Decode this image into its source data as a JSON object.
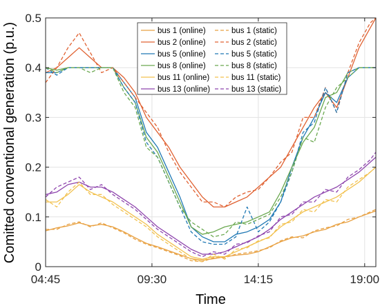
{
  "chart_data": {
    "type": "line",
    "xlabel": "Time",
    "ylabel": "Comitted conventional generation (p.u.)",
    "xlim": [
      0,
      14.75
    ],
    "ylim": [
      0,
      0.5
    ],
    "x_ticks": [
      {
        "value": 0,
        "label": "04:45"
      },
      {
        "value": 4.75,
        "label": "09:30"
      },
      {
        "value": 9.5,
        "label": "14:15"
      },
      {
        "value": 14.25,
        "label": "19:00"
      }
    ],
    "y_ticks": [
      {
        "value": 0,
        "label": "0"
      },
      {
        "value": 0.1,
        "label": "0.1"
      },
      {
        "value": 0.2,
        "label": "0.2"
      },
      {
        "value": 0.3,
        "label": "0.3"
      },
      {
        "value": 0.4,
        "label": "0.4"
      },
      {
        "value": 0.5,
        "label": "0.5"
      }
    ],
    "grid": true,
    "legend_position": "top-center",
    "legend_columns": 2,
    "series": [
      {
        "name": "bus 1 (online)",
        "color": "#E8A040",
        "dash": "solid",
        "x": [
          0,
          0.5,
          1,
          1.5,
          2,
          2.5,
          3,
          3.5,
          4,
          4.5,
          5,
          5.5,
          6,
          6.5,
          7,
          7.5,
          8,
          8.5,
          9,
          9.5,
          10,
          10.5,
          11,
          11.5,
          12,
          12.5,
          13,
          13.5,
          14,
          14.5,
          14.75
        ],
        "y": [
          0.072,
          0.078,
          0.082,
          0.088,
          0.082,
          0.085,
          0.08,
          0.07,
          0.058,
          0.047,
          0.04,
          0.032,
          0.024,
          0.016,
          0.013,
          0.016,
          0.02,
          0.023,
          0.025,
          0.03,
          0.04,
          0.05,
          0.058,
          0.062,
          0.07,
          0.075,
          0.085,
          0.09,
          0.1,
          0.108,
          0.112
        ]
      },
      {
        "name": "bus 2 (online)",
        "color": "#E06030",
        "dash": "solid",
        "x": [
          0,
          0.5,
          1,
          1.5,
          2,
          2.5,
          3,
          3.5,
          4,
          4.5,
          5,
          5.5,
          6,
          6.5,
          7,
          7.5,
          8,
          8.5,
          9,
          9.5,
          10,
          10.5,
          11,
          11.5,
          12,
          12.5,
          13,
          13.5,
          14,
          14.5,
          14.75
        ],
        "y": [
          0.39,
          0.4,
          0.42,
          0.44,
          0.42,
          0.4,
          0.4,
          0.38,
          0.35,
          0.3,
          0.27,
          0.24,
          0.2,
          0.17,
          0.14,
          0.12,
          0.12,
          0.13,
          0.14,
          0.16,
          0.18,
          0.2,
          0.24,
          0.28,
          0.32,
          0.35,
          0.32,
          0.38,
          0.44,
          0.48,
          0.5
        ]
      },
      {
        "name": "bus 5 (online)",
        "color": "#1F78B4",
        "dash": "solid",
        "x": [
          0,
          0.5,
          1,
          1.5,
          2,
          2.5,
          3,
          3.5,
          4,
          4.5,
          5,
          5.5,
          6,
          6.5,
          7,
          7.5,
          8,
          8.5,
          9,
          9.5,
          10,
          10.5,
          11,
          11.5,
          12,
          12.5,
          13,
          13.5,
          14,
          14.5,
          14.75
        ],
        "y": [
          0.39,
          0.39,
          0.4,
          0.4,
          0.4,
          0.4,
          0.4,
          0.37,
          0.34,
          0.27,
          0.24,
          0.19,
          0.14,
          0.08,
          0.06,
          0.05,
          0.05,
          0.065,
          0.07,
          0.08,
          0.095,
          0.13,
          0.2,
          0.26,
          0.3,
          0.35,
          0.33,
          0.38,
          0.4,
          0.4,
          0.4
        ]
      },
      {
        "name": "bus 8 (online)",
        "color": "#6AA84F",
        "dash": "solid",
        "x": [
          0,
          0.5,
          1,
          1.5,
          2,
          2.5,
          3,
          3.5,
          4,
          4.5,
          5,
          5.5,
          6,
          6.5,
          7,
          7.5,
          8,
          8.5,
          9,
          9.5,
          10,
          10.5,
          11,
          11.5,
          12,
          12.5,
          13,
          13.5,
          14,
          14.5,
          14.75
        ],
        "y": [
          0.4,
          0.395,
          0.4,
          0.4,
          0.4,
          0.4,
          0.4,
          0.36,
          0.33,
          0.26,
          0.23,
          0.18,
          0.13,
          0.08,
          0.065,
          0.07,
          0.08,
          0.085,
          0.09,
          0.1,
          0.11,
          0.15,
          0.2,
          0.25,
          0.28,
          0.34,
          0.35,
          0.39,
          0.4,
          0.4,
          0.4
        ]
      },
      {
        "name": "bus 11 (online)",
        "color": "#F2C14E",
        "dash": "solid",
        "x": [
          0,
          0.5,
          1,
          1.5,
          2,
          2.5,
          3,
          3.5,
          4,
          4.5,
          5,
          5.5,
          6,
          6.5,
          7,
          7.5,
          8,
          8.5,
          9,
          9.5,
          10,
          10.5,
          11,
          11.5,
          12,
          12.5,
          13,
          13.5,
          14,
          14.5,
          14.75
        ],
        "y": [
          0.13,
          0.13,
          0.145,
          0.165,
          0.15,
          0.14,
          0.13,
          0.115,
          0.1,
          0.085,
          0.065,
          0.05,
          0.035,
          0.02,
          0.015,
          0.02,
          0.02,
          0.03,
          0.04,
          0.05,
          0.06,
          0.08,
          0.095,
          0.11,
          0.12,
          0.13,
          0.14,
          0.155,
          0.17,
          0.19,
          0.2
        ]
      },
      {
        "name": "bus 13 (online)",
        "color": "#8E44AD",
        "dash": "solid",
        "x": [
          0,
          0.5,
          1,
          1.5,
          2,
          2.5,
          3,
          3.5,
          4,
          4.5,
          5,
          5.5,
          6,
          6.5,
          7,
          7.5,
          8,
          8.5,
          9,
          9.5,
          10,
          10.5,
          11,
          11.5,
          12,
          12.5,
          13,
          13.5,
          14,
          14.5,
          14.75
        ],
        "y": [
          0.145,
          0.15,
          0.165,
          0.17,
          0.16,
          0.16,
          0.15,
          0.135,
          0.12,
          0.1,
          0.08,
          0.065,
          0.05,
          0.035,
          0.025,
          0.025,
          0.03,
          0.04,
          0.05,
          0.06,
          0.075,
          0.095,
          0.11,
          0.125,
          0.14,
          0.15,
          0.16,
          0.175,
          0.19,
          0.21,
          0.22
        ]
      },
      {
        "name": "bus 1 (static)",
        "color": "#E8A040",
        "dash": "dashed",
        "x": [
          0,
          0.5,
          1,
          1.5,
          2,
          2.5,
          3,
          3.5,
          4,
          4.5,
          5,
          5.5,
          6,
          6.5,
          7,
          7.5,
          8,
          8.5,
          9,
          9.5,
          10,
          10.5,
          11,
          11.5,
          12,
          12.5,
          13,
          13.5,
          14,
          14.5,
          14.75
        ],
        "y": [
          0.075,
          0.075,
          0.085,
          0.09,
          0.08,
          0.088,
          0.078,
          0.068,
          0.055,
          0.045,
          0.038,
          0.03,
          0.022,
          0.012,
          0.01,
          0.018,
          0.018,
          0.025,
          0.028,
          0.032,
          0.038,
          0.052,
          0.06,
          0.058,
          0.072,
          0.078,
          0.082,
          0.095,
          0.1,
          0.11,
          0.115
        ]
      },
      {
        "name": "bus 2 (static)",
        "color": "#E06030",
        "dash": "dashed",
        "x": [
          0,
          0.5,
          1,
          1.5,
          2,
          2.5,
          3,
          3.5,
          4,
          4.5,
          5,
          5.5,
          6,
          6.5,
          7,
          7.5,
          8,
          8.5,
          9,
          9.5,
          10,
          10.5,
          11,
          11.5,
          12,
          12.5,
          13,
          13.5,
          14,
          14.5,
          14.75
        ],
        "y": [
          0.37,
          0.4,
          0.44,
          0.47,
          0.43,
          0.39,
          0.4,
          0.37,
          0.34,
          0.31,
          0.28,
          0.23,
          0.19,
          0.16,
          0.13,
          0.13,
          0.12,
          0.14,
          0.15,
          0.155,
          0.18,
          0.21,
          0.23,
          0.3,
          0.3,
          0.36,
          0.31,
          0.39,
          0.45,
          0.49,
          0.5
        ]
      },
      {
        "name": "bus 5 (static)",
        "color": "#1F78B4",
        "dash": "dashed",
        "x": [
          0,
          0.5,
          1,
          1.5,
          2,
          2.5,
          3,
          3.5,
          4,
          4.5,
          5,
          5.5,
          6,
          6.5,
          7,
          7.5,
          8,
          8.5,
          9,
          9.5,
          10,
          10.5,
          11,
          11.5,
          12,
          12.5,
          13,
          13.5,
          14,
          14.5,
          14.75
        ],
        "y": [
          0.4,
          0.385,
          0.4,
          0.4,
          0.4,
          0.4,
          0.4,
          0.36,
          0.33,
          0.25,
          0.22,
          0.17,
          0.12,
          0.07,
          0.05,
          0.045,
          0.045,
          0.06,
          0.12,
          0.07,
          0.09,
          0.13,
          0.19,
          0.27,
          0.29,
          0.36,
          0.31,
          0.39,
          0.4,
          0.4,
          0.4
        ]
      },
      {
        "name": "bus 8 (static)",
        "color": "#6AA84F",
        "dash": "dashed",
        "x": [
          0,
          0.5,
          1,
          1.5,
          2,
          2.5,
          3,
          3.5,
          4,
          4.5,
          5,
          5.5,
          6,
          6.5,
          7,
          7.5,
          8,
          8.5,
          9,
          9.5,
          10,
          10.5,
          11,
          11.5,
          12,
          12.5,
          13,
          13.5,
          14,
          14.5,
          14.75
        ],
        "y": [
          0.4,
          0.39,
          0.4,
          0.4,
          0.39,
          0.4,
          0.4,
          0.35,
          0.32,
          0.24,
          0.22,
          0.17,
          0.12,
          0.09,
          0.075,
          0.06,
          0.065,
          0.09,
          0.085,
          0.095,
          0.105,
          0.14,
          0.19,
          0.26,
          0.25,
          0.32,
          0.36,
          0.38,
          0.4,
          0.4,
          0.4
        ]
      },
      {
        "name": "bus 11 (static)",
        "color": "#F2C14E",
        "dash": "dashed",
        "x": [
          0,
          0.5,
          1,
          1.5,
          2,
          2.5,
          3,
          3.5,
          4,
          4.5,
          5,
          5.5,
          6,
          6.5,
          7,
          7.5,
          8,
          8.5,
          9,
          9.5,
          10,
          10.5,
          11,
          11.5,
          12,
          12.5,
          13,
          13.5,
          14,
          14.5,
          14.75
        ],
        "y": [
          0.135,
          0.12,
          0.15,
          0.17,
          0.145,
          0.145,
          0.125,
          0.11,
          0.095,
          0.08,
          0.06,
          0.045,
          0.03,
          0.015,
          0.01,
          0.025,
          0.015,
          0.035,
          0.038,
          0.052,
          0.058,
          0.085,
          0.09,
          0.115,
          0.11,
          0.135,
          0.13,
          0.16,
          0.175,
          0.19,
          0.2
        ]
      },
      {
        "name": "bus 13 (static)",
        "color": "#8E44AD",
        "dash": "dashed",
        "x": [
          0,
          0.5,
          1,
          1.5,
          2,
          2.5,
          3,
          3.5,
          4,
          4.5,
          5,
          5.5,
          6,
          6.5,
          7,
          7.5,
          8,
          8.5,
          9,
          9.5,
          10,
          10.5,
          11,
          11.5,
          12,
          12.5,
          13,
          13.5,
          14,
          14.5,
          14.75
        ],
        "y": [
          0.14,
          0.16,
          0.17,
          0.18,
          0.155,
          0.165,
          0.145,
          0.13,
          0.115,
          0.095,
          0.075,
          0.06,
          0.045,
          0.03,
          0.02,
          0.03,
          0.025,
          0.045,
          0.048,
          0.062,
          0.07,
          0.1,
          0.105,
          0.13,
          0.13,
          0.155,
          0.15,
          0.18,
          0.195,
          0.215,
          0.23
        ]
      }
    ]
  }
}
